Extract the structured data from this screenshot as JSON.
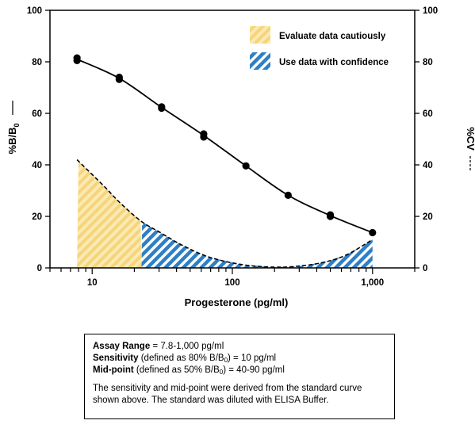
{
  "chart_data": {
    "type": "line",
    "x_scale": "log",
    "xlim": [
      5,
      2000
    ],
    "ylim": [
      0,
      100
    ],
    "xlabel": "Progesterone (pg/ml)",
    "ylabel_left": "%B/B",
    "ylabel_left_sub": "0",
    "ylabel_right": "%CV",
    "x_ticks": [
      {
        "value": 10,
        "label": "10"
      },
      {
        "value": 100,
        "label": "100"
      },
      {
        "value": 1000,
        "label": "1,000"
      }
    ],
    "y_ticks": [
      0,
      20,
      40,
      60,
      80,
      100
    ],
    "series": [
      {
        "style": "solid-curve-with-points",
        "color": "#000000",
        "points": [
          [
            7.8,
            80.5
          ],
          [
            7.8,
            81.5
          ],
          [
            15.6,
            73.2
          ],
          [
            15.6,
            74.0
          ],
          [
            31.3,
            62.0
          ],
          [
            31.3,
            62.5
          ],
          [
            62.5,
            50.8
          ],
          [
            62.5,
            52.0
          ],
          [
            125,
            39.6
          ],
          [
            250,
            28.2
          ],
          [
            500,
            20.0
          ],
          [
            500,
            20.6
          ],
          [
            1000,
            13.7
          ]
        ],
        "curve": [
          [
            7.8,
            81.0
          ],
          [
            15.6,
            73.6
          ],
          [
            31.3,
            62.3
          ],
          [
            62.5,
            51.4
          ],
          [
            125,
            39.6
          ],
          [
            250,
            28.2
          ],
          [
            500,
            20.3
          ],
          [
            1000,
            13.7
          ]
        ]
      },
      {
        "style": "dashed-curve",
        "color": "#000000",
        "curve": [
          [
            7.8,
            42
          ],
          [
            12,
            32
          ],
          [
            16,
            25
          ],
          [
            22.5,
            18
          ],
          [
            30,
            14
          ],
          [
            45,
            8.5
          ],
          [
            70,
            4
          ],
          [
            120,
            1.2
          ],
          [
            200,
            0.3
          ],
          [
            300,
            0.7
          ],
          [
            450,
            2.2
          ],
          [
            650,
            5
          ],
          [
            1000,
            11
          ]
        ]
      }
    ],
    "regions": [
      {
        "label": "Evaluate data cautiously",
        "x_from": 7.8,
        "x_to": 22.5,
        "color": "#f6d57a"
      },
      {
        "label": "Use data with confidence",
        "x_from": 22.5,
        "x_to": 1000,
        "color": "#2f7fc5"
      }
    ]
  },
  "info": {
    "line1_bold": "Assay Range",
    "line1_rest": " = 7.8-1,000 pg/ml",
    "line2_bold": "Sensitivity",
    "line2_a": " (defined as 80% B/B",
    "line2_sub": "0",
    "line2_b": ") = 10 pg/ml",
    "line3_bold": "Mid-point",
    "line3_a": " (defined as 50% B/B",
    "line3_sub": "0",
    "line3_b": ") = 40-90 pg/ml",
    "note": "The sensitivity and mid-point were derived from the standard curve shown above. The standard was diluted with ELISA Buffer."
  }
}
